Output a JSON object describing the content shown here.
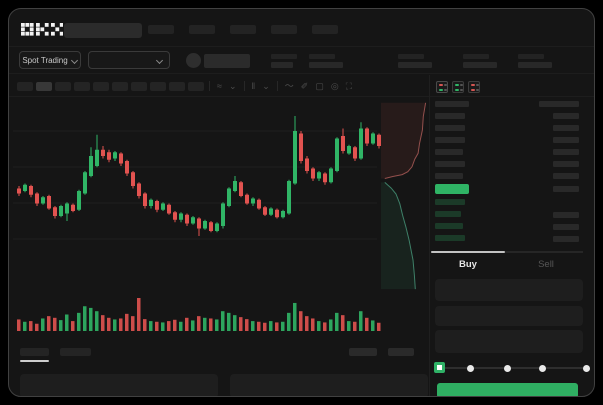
{
  "window": {
    "brand": "OKX"
  },
  "market_bar": {
    "market_selector_label": "Spot Trading"
  },
  "trade_panel": {
    "buy_tab": "Buy",
    "sell_tab": "Sell"
  },
  "colors": {
    "up_green": "#30b566",
    "down_red": "#e25350",
    "buy_button_green": "#2fae62",
    "last_price_green": "#2fb465",
    "background": "#151515"
  },
  "order_book": {
    "view_icons": [
      "orderbook-both-icon",
      "orderbook-bids-icon",
      "orderbook-asks-icon"
    ],
    "header": {
      "l": 34,
      "r": 40
    },
    "asks": [
      {
        "l": 30,
        "r": 26
      },
      {
        "l": 30,
        "r": 26
      },
      {
        "l": 30,
        "r": 26
      },
      {
        "l": 28,
        "r": 26
      },
      {
        "l": 30,
        "r": 26
      },
      {
        "l": 28,
        "r": 26
      }
    ],
    "last_price_bar": {
      "w": 34,
      "r": 26
    },
    "bids": [
      {
        "l": 30,
        "r": 0
      },
      {
        "l": 26,
        "r": 26
      },
      {
        "l": 28,
        "r": 26
      },
      {
        "l": 30,
        "r": 26
      }
    ]
  },
  "chart_data": {
    "type": "candlestick",
    "title": "",
    "xlabel": "",
    "ylabel": "",
    "price_scale": "unlabeled, values normalized 0-100 (relative price)",
    "gridlines": true,
    "panes": [
      "price",
      "volume",
      "depth"
    ],
    "candles_ohlc": [
      [
        42,
        44,
        36,
        38
      ],
      [
        40,
        46,
        39,
        45
      ],
      [
        44,
        45,
        35,
        37
      ],
      [
        38,
        39,
        28,
        30
      ],
      [
        30,
        36,
        29,
        35
      ],
      [
        36,
        37,
        25,
        26
      ],
      [
        27,
        28,
        18,
        20
      ],
      [
        20,
        29,
        19,
        28
      ],
      [
        22,
        31,
        16,
        30
      ],
      [
        29,
        30,
        23,
        24
      ],
      [
        25,
        41,
        24,
        40
      ],
      [
        38,
        56,
        37,
        55
      ],
      [
        52,
        75,
        51,
        68
      ],
      [
        60,
        85,
        59,
        73
      ],
      [
        73,
        76,
        66,
        68
      ],
      [
        71,
        73,
        63,
        65
      ],
      [
        66,
        72,
        64,
        71
      ],
      [
        70,
        71,
        60,
        62
      ],
      [
        64,
        65,
        52,
        54
      ],
      [
        55,
        56,
        42,
        44
      ],
      [
        46,
        47,
        34,
        36
      ],
      [
        38,
        39,
        26,
        28
      ],
      [
        28,
        34,
        26,
        33
      ],
      [
        32,
        33,
        23,
        25
      ],
      [
        25,
        31,
        24,
        30
      ],
      [
        29,
        30,
        21,
        22
      ],
      [
        23,
        24,
        15,
        17
      ],
      [
        17,
        23,
        15,
        22
      ],
      [
        21,
        22,
        12,
        14
      ],
      [
        14,
        20,
        13,
        19
      ],
      [
        18,
        19,
        4,
        10
      ],
      [
        10,
        17,
        9,
        16
      ],
      [
        15,
        16,
        7,
        8
      ],
      [
        8,
        15,
        7,
        14
      ],
      [
        12,
        31,
        10,
        30
      ],
      [
        28,
        43,
        27,
        42
      ],
      [
        40,
        52,
        39,
        48
      ],
      [
        47,
        48,
        35,
        36
      ],
      [
        37,
        38,
        29,
        30
      ],
      [
        30,
        35,
        28,
        34
      ],
      [
        33,
        34,
        25,
        26
      ],
      [
        27,
        28,
        20,
        21
      ],
      [
        21,
        27,
        20,
        26
      ],
      [
        25,
        26,
        18,
        19
      ],
      [
        19,
        25,
        18,
        24
      ],
      [
        22,
        49,
        21,
        48
      ],
      [
        46,
        100,
        45,
        88
      ],
      [
        86,
        88,
        62,
        64
      ],
      [
        66,
        68,
        54,
        56
      ],
      [
        58,
        59,
        48,
        50
      ],
      [
        50,
        56,
        48,
        55
      ],
      [
        54,
        55,
        45,
        47
      ],
      [
        47,
        59,
        46,
        58
      ],
      [
        56,
        83,
        55,
        82
      ],
      [
        84,
        90,
        70,
        72
      ],
      [
        70,
        77,
        69,
        76
      ],
      [
        75,
        76,
        64,
        66
      ],
      [
        66,
        95,
        65,
        90
      ],
      [
        90,
        91,
        76,
        78
      ],
      [
        78,
        87,
        77,
        86
      ],
      [
        85,
        86,
        74,
        76
      ]
    ],
    "volume": [
      35,
      28,
      30,
      22,
      38,
      45,
      40,
      33,
      50,
      30,
      55,
      75,
      70,
      60,
      48,
      40,
      35,
      38,
      52,
      45,
      100,
      36,
      30,
      28,
      26,
      30,
      34,
      28,
      40,
      32,
      45,
      40,
      38,
      35,
      60,
      55,
      48,
      42,
      36,
      30,
      28,
      25,
      30,
      26,
      28,
      55,
      85,
      60,
      45,
      38,
      30,
      26,
      35,
      55,
      48,
      30,
      28,
      60,
      40,
      32,
      25
    ],
    "depth": {
      "orientation": "vertical",
      "asks_line": [
        [
          0.95,
          0.03
        ],
        [
          0.9,
          0.1
        ],
        [
          0.88,
          0.17
        ],
        [
          0.82,
          0.24
        ],
        [
          0.79,
          0.29
        ],
        [
          0.72,
          0.32
        ],
        [
          0.66,
          0.36
        ],
        [
          0.57,
          0.385
        ],
        [
          0.45,
          0.4
        ],
        [
          0.25,
          0.41
        ],
        [
          0.08,
          0.42
        ]
      ],
      "bids_line": [
        [
          0.08,
          0.44
        ],
        [
          0.22,
          0.47
        ],
        [
          0.32,
          0.5
        ],
        [
          0.4,
          0.55
        ],
        [
          0.46,
          0.61
        ],
        [
          0.53,
          0.67
        ],
        [
          0.6,
          0.74
        ],
        [
          0.64,
          0.79
        ],
        [
          0.68,
          0.84
        ],
        [
          0.71,
          0.92
        ],
        [
          0.73,
          0.99
        ]
      ]
    }
  }
}
